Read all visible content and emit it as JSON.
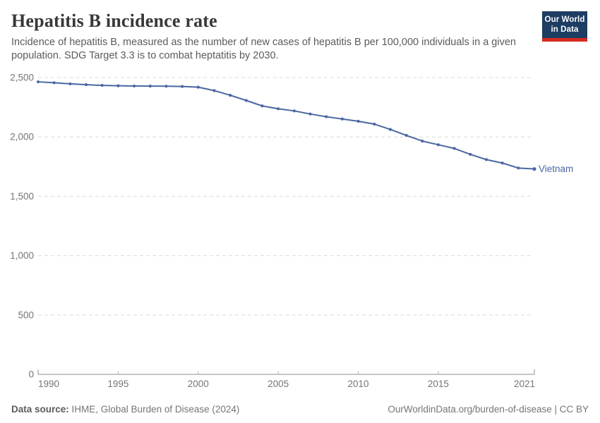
{
  "header": {
    "title": "Hepatitis B incidence rate",
    "subtitle": "Incidence of hepatitis B, measured as the number of new cases of hepatitis B per 100,000 individuals in a given population. SDG Target 3.3 is to combat heptatitis by 2030.",
    "logo": {
      "line1": "Our World",
      "line2": "in Data",
      "bg_color": "#1d3d63",
      "bar_color": "#d42a20"
    }
  },
  "chart_data": {
    "type": "line",
    "title": "Hepatitis B incidence rate",
    "xlabel": "",
    "ylabel": "",
    "xlim": [
      1990,
      2021
    ],
    "ylim": [
      0,
      2500
    ],
    "grid": "horizontal-dashed",
    "legend_position": "end-of-line-label",
    "x": [
      1990,
      1991,
      1992,
      1993,
      1994,
      1995,
      1996,
      1997,
      1998,
      1999,
      2000,
      2001,
      2002,
      2003,
      2004,
      2005,
      2006,
      2007,
      2008,
      2009,
      2010,
      2011,
      2012,
      2013,
      2014,
      2015,
      2016,
      2017,
      2018,
      2019,
      2020,
      2021
    ],
    "series": [
      {
        "name": "Vietnam",
        "color": "#4a67a3",
        "values": [
          2464,
          2456,
          2447,
          2440,
          2434,
          2431,
          2429,
          2428,
          2427,
          2425,
          2419,
          2390,
          2351,
          2307,
          2261,
          2237,
          2219,
          2193,
          2170,
          2151,
          2132,
          2108,
          2063,
          2013,
          1965,
          1934,
          1903,
          1853,
          1809,
          1780,
          1738,
          1730
        ]
      }
    ],
    "y_ticks": [
      {
        "value": 0,
        "label": "0"
      },
      {
        "value": 500,
        "label": "500"
      },
      {
        "value": 1000,
        "label": "1,000"
      },
      {
        "value": 1500,
        "label": "1,500"
      },
      {
        "value": 2000,
        "label": "2,000"
      },
      {
        "value": 2500,
        "label": "2,500"
      }
    ],
    "x_ticks": [
      {
        "value": 1990,
        "label": "1990"
      },
      {
        "value": 1995,
        "label": "1995"
      },
      {
        "value": 2000,
        "label": "2000"
      },
      {
        "value": 2005,
        "label": "2005"
      },
      {
        "value": 2010,
        "label": "2010"
      },
      {
        "value": 2015,
        "label": "2015"
      },
      {
        "value": 2021,
        "label": "2021"
      }
    ],
    "colors": {
      "gridline": "#dcdcdc",
      "axis": "#8f8f8f",
      "tick_label": "#757575"
    }
  },
  "footer": {
    "source_label": "Data source:",
    "source_value": " IHME, Global Burden of Disease (2024)",
    "credit": "OurWorldinData.org/burden-of-disease | CC BY"
  }
}
